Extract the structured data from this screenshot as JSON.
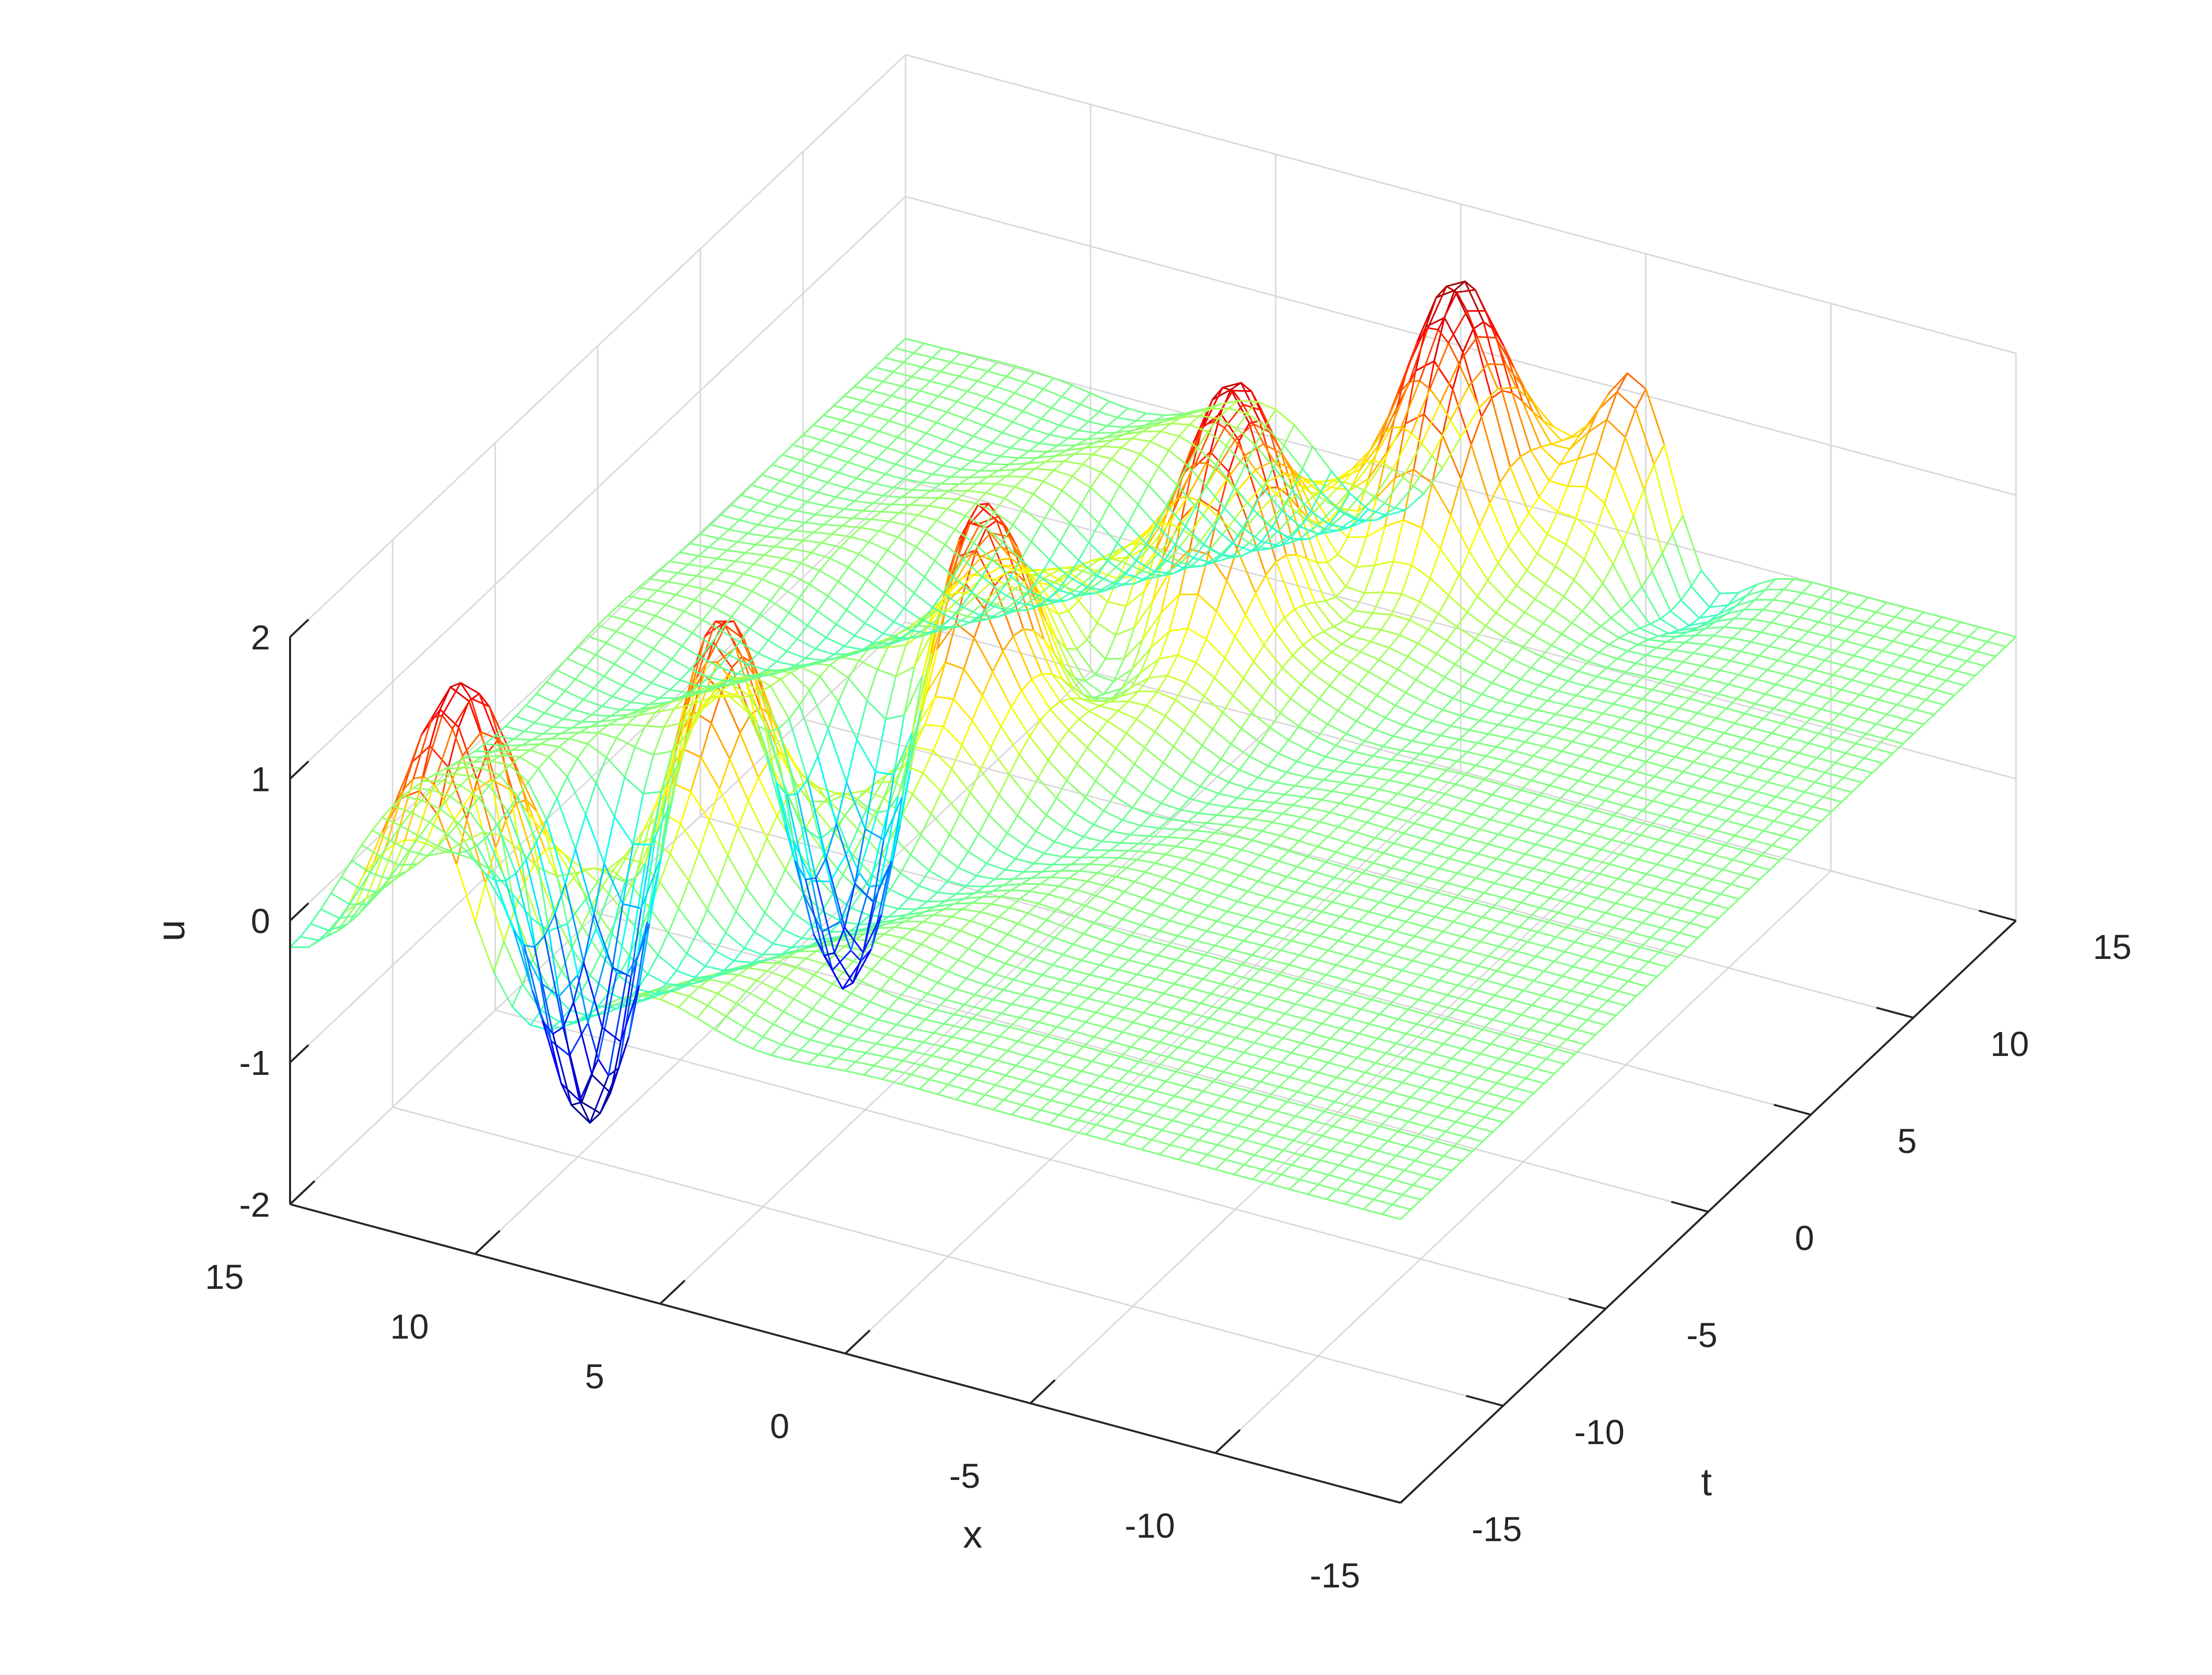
{
  "chart_data": {
    "type": "surface",
    "style": "mesh",
    "colormap": "jet",
    "grid": true,
    "xlabel": "x",
    "ylabel": "t",
    "zlabel": "u",
    "xlim": [
      -15,
      15
    ],
    "ylim": [
      -15,
      15
    ],
    "zlim": [
      -2,
      2
    ],
    "xticks": [
      "-15",
      "-10",
      "-5",
      "0",
      "5",
      "10",
      "15"
    ],
    "yticks": [
      "-15",
      "-10",
      "-5",
      "0",
      "5",
      "10",
      "15"
    ],
    "zticks": [
      "-2",
      "-1",
      "0",
      "1",
      "2"
    ],
    "x_range_drawn": [
      -15,
      15
    ],
    "t_range_drawn": [
      -15,
      15
    ],
    "peaks": [
      {
        "x": 11.5,
        "t": -13.0,
        "u": 1.5
      },
      {
        "x": 8.5,
        "t": -6.0,
        "u": 1.9
      },
      {
        "x": 5.0,
        "t": 0.3,
        "u": 2.0
      },
      {
        "x": 1.5,
        "t": 6.5,
        "u": 2.0
      },
      {
        "x": -1.5,
        "t": 12.0,
        "u": 2.0
      },
      {
        "x": -5.0,
        "t": 15.0,
        "u": 1.8
      }
    ],
    "troughs": [
      {
        "x": 10.5,
        "t": -8.0,
        "u": -2.0
      },
      {
        "x": 7.0,
        "t": -2.0,
        "u": -1.6
      },
      {
        "x": -6.0,
        "t": 14.5,
        "u": -1.0
      }
    ]
  }
}
